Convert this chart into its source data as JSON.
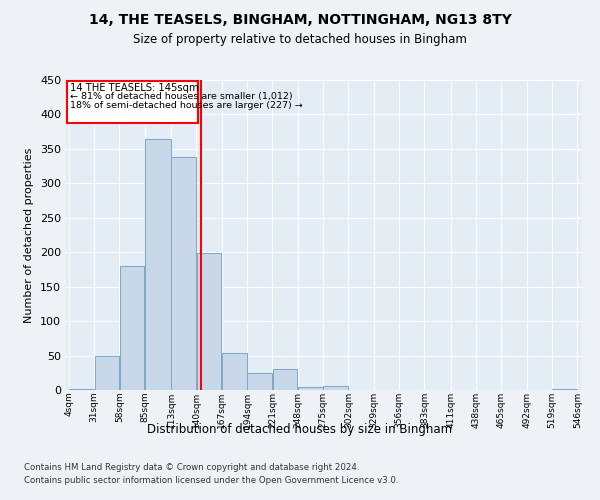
{
  "title": "14, THE TEASELS, BINGHAM, NOTTINGHAM, NG13 8TY",
  "subtitle": "Size of property relative to detached houses in Bingham",
  "xlabel": "Distribution of detached houses by size in Bingham",
  "ylabel": "Number of detached properties",
  "bar_color": "#c8d8e8",
  "bar_edge_color": "#7aa8c8",
  "bar_values": [
    2,
    49,
    180,
    365,
    338,
    199,
    54,
    25,
    31,
    5,
    6,
    0,
    0,
    0,
    0,
    0,
    0,
    0,
    0,
    2
  ],
  "categories": [
    "4sqm",
    "31sqm",
    "58sqm",
    "85sqm",
    "113sqm",
    "140sqm",
    "167sqm",
    "194sqm",
    "221sqm",
    "248sqm",
    "275sqm",
    "302sqm",
    "329sqm",
    "356sqm",
    "383sqm",
    "411sqm",
    "438sqm",
    "465sqm",
    "492sqm",
    "519sqm",
    "546sqm"
  ],
  "bin_edges": [
    4,
    31,
    58,
    85,
    113,
    140,
    167,
    194,
    221,
    248,
    275,
    302,
    329,
    356,
    383,
    411,
    438,
    465,
    492,
    519,
    546
  ],
  "property_size": 145,
  "annotation_title": "14 THE TEASELS: 145sqm",
  "annotation_line1": "← 81% of detached houses are smaller (1,012)",
  "annotation_line2": "18% of semi-detached houses are larger (227) →",
  "vline_x": 145,
  "ylim": [
    0,
    450
  ],
  "yticks": [
    0,
    50,
    100,
    150,
    200,
    250,
    300,
    350,
    400,
    450
  ],
  "background_color": "#eef2f7",
  "plot_bg_color": "#e4ecf5",
  "grid_color": "#ffffff",
  "footer1": "Contains HM Land Registry data © Crown copyright and database right 2024.",
  "footer2": "Contains public sector information licensed under the Open Government Licence v3.0."
}
